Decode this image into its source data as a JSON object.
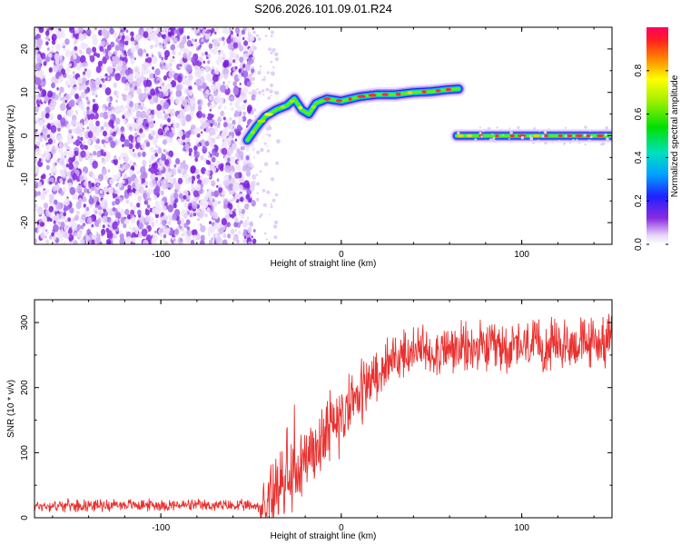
{
  "title": "S206.2026.101.09.01.R24",
  "chart_data": [
    {
      "type": "heatmap",
      "name": "spectrogram",
      "xlabel": "Height of straight line (km)",
      "ylabel": "Frequency (Hz)",
      "xlim": [
        -170,
        150
      ],
      "ylim": [
        -25,
        25
      ],
      "xticks": [
        -100,
        0,
        100
      ],
      "xtick_labels": [
        "-100",
        "0",
        "100"
      ],
      "yticks": [
        -20,
        -10,
        0,
        10,
        20
      ],
      "ytick_labels": [
        "-20",
        "-10",
        "0",
        "10",
        "20"
      ],
      "noise_region_x": [
        -170,
        -50
      ],
      "ridge": {
        "x": [
          -52,
          -47,
          -42,
          -36,
          -30,
          -26,
          -22,
          -18,
          -14,
          -8,
          0,
          10,
          20,
          30,
          40,
          50,
          58,
          65
        ],
        "y": [
          -1,
          2,
          4.5,
          6,
          7,
          8.5,
          6,
          5,
          7.5,
          8.5,
          8,
          9,
          9.5,
          9.5,
          10,
          10.2,
          10.6,
          10.8
        ]
      },
      "ridge2": {
        "x": [
          64,
          150
        ],
        "y": [
          0,
          0
        ]
      },
      "colorbar": {
        "label": "Normalized spectral amplitude",
        "range": [
          0,
          1
        ],
        "ticks": [
          0.0,
          0.2,
          0.4,
          0.6,
          0.8
        ],
        "tick_labels": [
          "0.0",
          "0.2",
          "0.4",
          "0.6",
          "0.8"
        ]
      }
    },
    {
      "type": "line",
      "name": "snr",
      "xlabel": "Height of straight line (km)",
      "ylabel": "SNR (10 * v/v)",
      "xlim": [
        -170,
        150
      ],
      "ylim": [
        0,
        335
      ],
      "xticks": [
        -100,
        0,
        100
      ],
      "xtick_labels": [
        "-100",
        "0",
        "100"
      ],
      "yticks": [
        0,
        100,
        200,
        300
      ],
      "ytick_labels": [
        "0",
        "100",
        "200",
        "300"
      ],
      "color": "#e8312f",
      "trend": {
        "x": [
          -170,
          -120,
          -42,
          -30,
          -20,
          -10,
          0,
          10,
          20,
          30,
          40,
          60,
          80,
          100,
          120,
          150
        ],
        "y": [
          18,
          20,
          18,
          60,
          90,
          120,
          155,
          190,
          225,
          245,
          255,
          258,
          260,
          262,
          265,
          272
        ]
      }
    }
  ]
}
